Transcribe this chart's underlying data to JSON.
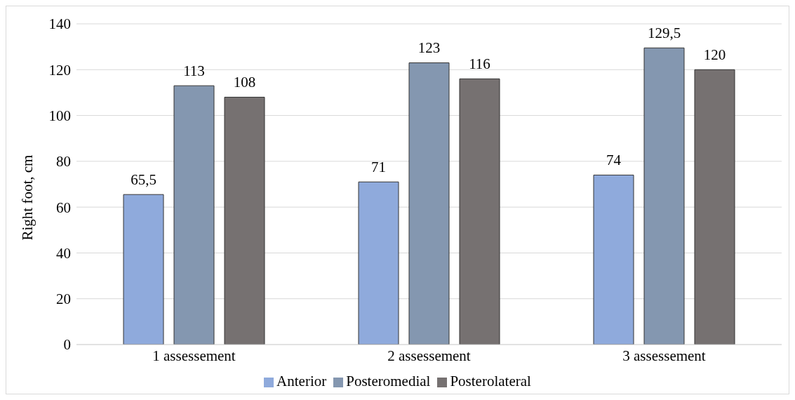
{
  "chart_data": {
    "type": "bar",
    "ylabel": "Right foot, cm",
    "categories": [
      "1 assessement",
      "2 assessement",
      "3 assessement"
    ],
    "series": [
      {
        "name": "Anterior",
        "color": "#8faadc",
        "values": [
          65.5,
          71,
          74
        ],
        "value_labels": [
          "65,5",
          "71",
          "74"
        ]
      },
      {
        "name": "Posteromedial",
        "color": "#8497b0",
        "values": [
          113,
          123,
          129.5
        ],
        "value_labels": [
          "113",
          "123",
          "129,5"
        ]
      },
      {
        "name": "Posterolateral",
        "color": "#767171",
        "values": [
          108,
          116,
          120
        ],
        "value_labels": [
          "108",
          "116",
          "120"
        ]
      }
    ],
    "ylim": [
      0,
      140
    ],
    "yticks": [
      0,
      20,
      40,
      60,
      80,
      100,
      120,
      140
    ],
    "grid": "y",
    "legend": "bottom"
  }
}
